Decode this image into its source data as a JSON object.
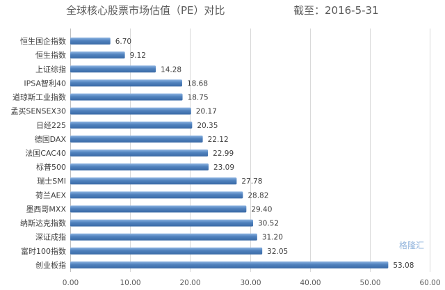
{
  "title": {
    "main": "全球核心股票市场估值（PE）对比",
    "date": "截至：2016-5-31"
  },
  "watermark": "格隆汇",
  "colors": {
    "bar_top": "#8db4e2",
    "bar_mid": "#4f81bd",
    "bar_bottom": "#3a6aa6"
  },
  "chart_data": {
    "type": "bar",
    "orientation": "horizontal",
    "categories": [
      "恒生国企指数",
      "恒生指数",
      "上证综指",
      "IPSA智利40",
      "道琼斯工业指数",
      "孟买SENSEX30",
      "日经225",
      "德国DAX",
      "法国CAC40",
      "标普500",
      "瑞士SMI",
      "荷兰AEX",
      "墨西哥MXX",
      "纳斯达克指数",
      "深证成指",
      "富时100指数",
      "创业板指"
    ],
    "values": [
      6.7,
      9.12,
      14.28,
      18.68,
      18.75,
      20.17,
      20.35,
      22.12,
      22.99,
      23.09,
      27.78,
      28.82,
      29.4,
      30.52,
      31.2,
      32.05,
      53.08
    ],
    "value_labels": [
      "6.70",
      "9.12",
      "14.28",
      "18.68",
      "18.75",
      "20.17",
      "20.35",
      "22.12",
      "22.99",
      "23.09",
      "27.78",
      "28.82",
      "29.40",
      "30.52",
      "31.20",
      "32.05",
      "53.08"
    ],
    "xlim": [
      0,
      60
    ],
    "x_ticks": [
      "0.00",
      "10.00",
      "20.00",
      "30.00",
      "40.00",
      "50.00",
      "60.00"
    ],
    "grid": true,
    "legend": "none"
  }
}
